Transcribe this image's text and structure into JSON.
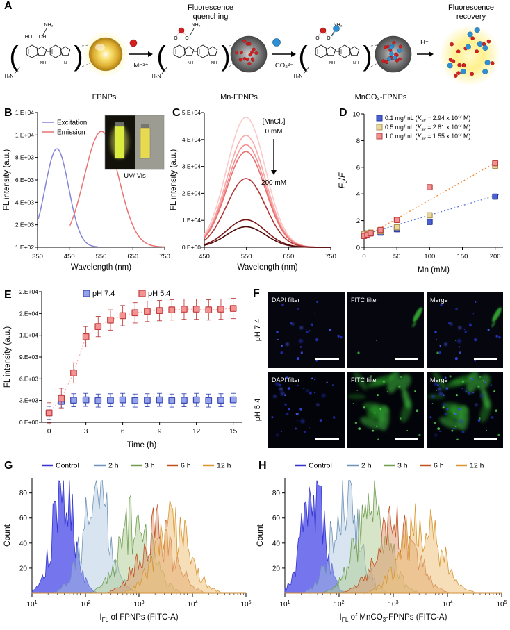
{
  "panels": {
    "A": "A",
    "B": "B",
    "C": "C",
    "D": "D",
    "E": "E",
    "F": "F",
    "G": "G",
    "H": "H"
  },
  "panelA": {
    "caption_quenching": "Fluorescence quenching",
    "caption_recovery": "Fluorescence recovery",
    "labels": {
      "fpnps": "FPNPs",
      "mn_fpnps": "Mn-FPNPs",
      "mnco3_fpnps": "MnCO₃-FPNPs"
    },
    "ions": {
      "mn": "Mn²⁺",
      "carbonate": "CO₃²⁻",
      "proton": "H⁺"
    },
    "structure": {
      "amine_top": "NH₂",
      "hydroxyl_left": "HO",
      "hydroxyl_right": "OH",
      "amine_left": "H₂N",
      "oxy": "O",
      "nh": "NH"
    }
  },
  "panelF": {
    "rows": [
      "pH 7.4",
      "pH 5.4"
    ],
    "columns": [
      "DAPI filter",
      "FITC filter",
      "Merge"
    ]
  },
  "chart_data": {
    "B": {
      "type": "line",
      "xlabel": "Wavelength (nm)",
      "ylabel": "FL intensity (a.u.)",
      "xlim": [
        350,
        750
      ],
      "xticks": [
        350,
        450,
        550,
        650,
        750
      ],
      "ylim": [
        100,
        12100
      ],
      "yticks": [
        {
          "v": 100,
          "label": "1.E+02"
        },
        {
          "v": 2100,
          "label": "2.E+03"
        },
        {
          "v": 4100,
          "label": "4.E+03"
        },
        {
          "v": 6100,
          "label": "6.E+03"
        },
        {
          "v": 8100,
          "label": "8.E+03"
        },
        {
          "v": 10100,
          "label": "1.E+04"
        },
        {
          "v": 12100,
          "label": "1.E+04"
        }
      ],
      "series": [
        {
          "name": "Excitation",
          "color": "#8484d9",
          "center": 411,
          "sigma": 37,
          "amplitude": 8750,
          "baseline": 120,
          "range": [
            352,
            540
          ]
        },
        {
          "name": "Emission",
          "color": "#e97272",
          "center": 551,
          "sigma": 54,
          "amplitude": 10300,
          "baseline": 120,
          "range": [
            452,
            750
          ]
        }
      ],
      "inset_caption": "UV/ Vis"
    },
    "C": {
      "type": "line",
      "xlabel": "Wavelength (nm)",
      "ylabel": "FL intensity (a.u.)",
      "xlim": [
        450,
        750
      ],
      "xticks": [
        450,
        550,
        650,
        750
      ],
      "ylim": [
        0,
        50000
      ],
      "yticks": [
        {
          "v": 0,
          "label": "0.E+00"
        },
        {
          "v": 10000,
          "label": "1.E+04"
        },
        {
          "v": 20000,
          "label": "2.E+04"
        },
        {
          "v": 30000,
          "label": "3.E+04"
        },
        {
          "v": 40000,
          "label": "4.E+04"
        },
        {
          "v": 50000,
          "label": "5.E+04"
        }
      ],
      "annotation": {
        "title": "[MnCl₂]",
        "start": "0 mM",
        "end": "200 mM"
      },
      "peak_center": 549,
      "peak_sigma": 46,
      "series": [
        {
          "peak": 48200,
          "color": "#fbcaca"
        },
        {
          "peak": 41500,
          "color": "#f7aaaa"
        },
        {
          "peak": 38000,
          "color": "#f28f8f"
        },
        {
          "peak": 35500,
          "color": "#ea6f6f"
        },
        {
          "peak": 25500,
          "color": "#b23232"
        },
        {
          "peak": 10200,
          "color": "#7c1414"
        },
        {
          "peak": 7600,
          "color": "#4e0808"
        }
      ]
    },
    "D": {
      "type": "scatter",
      "xlabel": "Mn (mM)",
      "ylabel_parts": [
        {
          "t": "F",
          "i": true
        },
        {
          "t": "0",
          "sub": true
        },
        {
          "t": "/"
        },
        {
          "t": "F",
          "i": true
        }
      ],
      "xlim": [
        0,
        212
      ],
      "xticks": [
        0,
        50,
        100,
        150,
        200
      ],
      "ylim": [
        0,
        10
      ],
      "yticks": [
        0,
        2,
        4,
        6,
        8,
        10
      ],
      "x": [
        0,
        5,
        10,
        25,
        50,
        100,
        200
      ],
      "series": [
        {
          "label_parts": [
            {
              "t": "0.1 mg/mL ("
            },
            {
              "t": "K",
              "i": true
            },
            {
              "t": "sv",
              "sub": true
            },
            {
              "t": " = 2.94 x 10"
            },
            {
              "t": "-3",
              "sup": true
            },
            {
              "t": " M)"
            }
          ],
          "fill": "#4a5fd0",
          "edge": "#27379b",
          "values": [
            1.0,
            1.0,
            1.05,
            1.1,
            1.35,
            1.9,
            3.8
          ]
        },
        {
          "label_parts": [
            {
              "t": "0.5 mg/mL ("
            },
            {
              "t": "K",
              "i": true
            },
            {
              "t": "sv",
              "sub": true
            },
            {
              "t": " = 2.81 x 10"
            },
            {
              "t": "-3",
              "sup": true
            },
            {
              "t": " M)"
            }
          ],
          "fill": "#ead8a2",
          "edge": "#a9934f",
          "values": [
            1.0,
            1.05,
            1.1,
            1.2,
            1.5,
            2.4,
            6.1
          ]
        },
        {
          "label_parts": [
            {
              "t": "1.0 mg/mL ("
            },
            {
              "t": "K",
              "i": true
            },
            {
              "t": "sv",
              "sub": true
            },
            {
              "t": " = 1.55 x 10"
            },
            {
              "t": "-3",
              "sup": true
            },
            {
              "t": " M)"
            }
          ],
          "fill": "#f09090",
          "edge": "#bb3d3d",
          "values": [
            0.85,
            0.95,
            1.05,
            1.3,
            2.05,
            4.5,
            6.3
          ]
        }
      ],
      "trendlines": [
        {
          "color": "#f08a30",
          "x0": 0,
          "y0": 0.75,
          "x1": 206,
          "y1": 6.5
        },
        {
          "color": "#5b6fd6",
          "x0": 0,
          "y0": 0.95,
          "x1": 206,
          "y1": 3.95
        }
      ]
    },
    "E": {
      "type": "line",
      "xlabel": "Time (h)",
      "ylabel": "FL intensity (a.u.)",
      "xlim": [
        -0.6,
        15.7
      ],
      "xticks": [
        0,
        3,
        6,
        9,
        12,
        15
      ],
      "ylim": [
        0,
        18000
      ],
      "yticks": [
        {
          "v": 0,
          "label": "0.E+00"
        },
        {
          "v": 3000,
          "label": "3.E+03"
        },
        {
          "v": 6000,
          "label": "6.E+03"
        },
        {
          "v": 9000,
          "label": "9.E+03"
        },
        {
          "v": 12000,
          "label": "1.E+04"
        },
        {
          "v": 15000,
          "label": "2.E+04"
        },
        {
          "v": 18000,
          "label": "2.E+04"
        }
      ],
      "x": [
        0,
        1,
        2,
        3,
        4,
        5,
        6,
        7,
        8,
        9,
        10,
        11,
        12,
        13,
        14,
        15
      ],
      "series": [
        {
          "name": "pH 7.4",
          "fill": "#93a2ea",
          "edge": "#3a49b4",
          "err": 900,
          "values": [
            1300,
            2900,
            3050,
            3100,
            3000,
            3050,
            3100,
            3000,
            3050,
            3100,
            3000,
            3050,
            3100,
            3000,
            3050,
            3100
          ]
        },
        {
          "name": "pH 5.4",
          "fill": "#f59393",
          "edge": "#c03e3e",
          "err": 1400,
          "values": [
            1300,
            3300,
            6800,
            11800,
            13200,
            14100,
            14700,
            15100,
            15300,
            15400,
            15500,
            15600,
            15600,
            15500,
            15600,
            15700
          ]
        }
      ]
    },
    "G": {
      "type": "histogram",
      "xlabel_parts": [
        {
          "t": "I"
        },
        {
          "t": "FL",
          "sub": true
        },
        {
          "t": " of FPNPs (FITC-A)"
        }
      ],
      "ylabel": "Count",
      "xtick_base": "10",
      "xlog_exponents": [
        1,
        2,
        3,
        4,
        5
      ],
      "ylim": [
        0,
        92
      ],
      "yticks": [
        20,
        40,
        60,
        80
      ],
      "series": [
        {
          "name": "Control",
          "center": 1.58,
          "sigma": 0.21,
          "amp": 86,
          "stroke": "#3434cf",
          "fill": "#5353e8",
          "fill_opacity": 0.8,
          "seed": 101
        },
        {
          "name": "2 h",
          "center": 2.2,
          "sigma": 0.27,
          "amp": 74,
          "stroke": "#6e93b8",
          "fill": "#a9c3dd",
          "fill_opacity": 0.45,
          "seed": 202
        },
        {
          "name": "3 h",
          "center": 2.95,
          "sigma": 0.3,
          "amp": 62,
          "stroke": "#6f9e4f",
          "fill": "#aecb8f",
          "fill_opacity": 0.5,
          "seed": 303
        },
        {
          "name": "6 h",
          "center": 3.32,
          "sigma": 0.32,
          "amp": 54,
          "stroke": "#c05020",
          "fill": "#dc9166",
          "fill_opacity": 0.5,
          "seed": 404
        },
        {
          "name": "12 h",
          "center": 3.63,
          "sigma": 0.32,
          "amp": 58,
          "stroke": "#d8952f",
          "fill": "#edc27e",
          "fill_opacity": 0.55,
          "seed": 505
        }
      ]
    },
    "H": {
      "type": "histogram",
      "xlabel_parts": [
        {
          "t": "I"
        },
        {
          "t": "FL",
          "sub": true
        },
        {
          "t": " of MnCO"
        },
        {
          "t": "3",
          "sub": true
        },
        {
          "t": "-FPNPs (FITC-A)"
        }
      ],
      "ylabel": "Count",
      "xtick_base": "10",
      "xlog_exponents": [
        1,
        2,
        3,
        4,
        5
      ],
      "ylim": [
        0,
        92
      ],
      "yticks": [
        20,
        40,
        60,
        80
      ],
      "series": [
        {
          "name": "Control",
          "center": 1.52,
          "sigma": 0.2,
          "amp": 86,
          "stroke": "#3434cf",
          "fill": "#5353e8",
          "fill_opacity": 0.8,
          "seed": 111
        },
        {
          "name": "2 h",
          "center": 2.12,
          "sigma": 0.26,
          "amp": 80,
          "stroke": "#6e93b8",
          "fill": "#a9c3dd",
          "fill_opacity": 0.45,
          "seed": 222
        },
        {
          "name": "3 h",
          "center": 2.6,
          "sigma": 0.3,
          "amp": 70,
          "stroke": "#6f9e4f",
          "fill": "#aecb8f",
          "fill_opacity": 0.5,
          "seed": 333
        },
        {
          "name": "6 h",
          "center": 3.05,
          "sigma": 0.35,
          "amp": 56,
          "stroke": "#c05020",
          "fill": "#dc9166",
          "fill_opacity": 0.5,
          "seed": 444
        },
        {
          "name": "12 h",
          "center": 3.5,
          "sigma": 0.35,
          "amp": 60,
          "stroke": "#d8952f",
          "fill": "#edc27e",
          "fill_opacity": 0.55,
          "seed": 555
        }
      ]
    }
  }
}
